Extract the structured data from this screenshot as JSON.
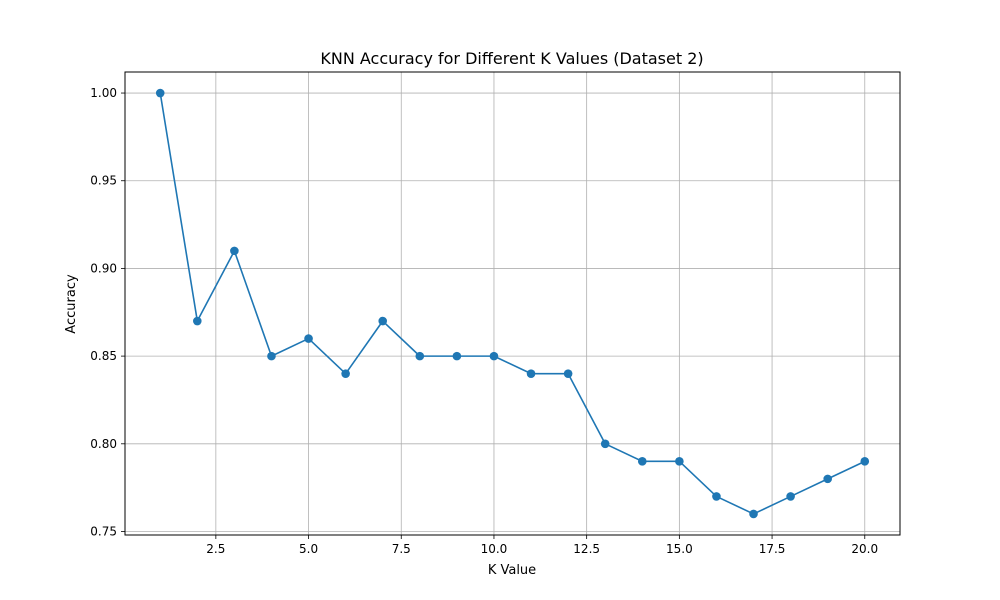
{
  "chart_data": {
    "type": "line",
    "title": "KNN Accuracy for Different K Values (Dataset 2)",
    "xlabel": "K Value",
    "ylabel": "Accuracy",
    "x": [
      1,
      2,
      3,
      4,
      5,
      6,
      7,
      8,
      9,
      10,
      11,
      12,
      13,
      14,
      15,
      16,
      17,
      18,
      19,
      20
    ],
    "series": [
      {
        "values": [
          1.0,
          0.87,
          0.91,
          0.85,
          0.86,
          0.84,
          0.87,
          0.85,
          0.85,
          0.85,
          0.84,
          0.84,
          0.8,
          0.79,
          0.79,
          0.77,
          0.76,
          0.77,
          0.78,
          0.79
        ]
      }
    ],
    "xlim": [
      0.05,
      20.95
    ],
    "ylim": [
      0.748,
      1.012
    ],
    "xticks": [
      2.5,
      5.0,
      7.5,
      10.0,
      12.5,
      15.0,
      17.5,
      20.0
    ],
    "xtick_labels": [
      "2.5",
      "5.0",
      "7.5",
      "10.0",
      "12.5",
      "15.0",
      "17.5",
      "20.0"
    ],
    "yticks": [
      0.75,
      0.8,
      0.85,
      0.9,
      0.95,
      1.0
    ],
    "ytick_labels": [
      "0.75",
      "0.80",
      "0.85",
      "0.90",
      "0.95",
      "1.00"
    ],
    "grid": true,
    "marker": "circle",
    "color": "#1f77b4"
  }
}
